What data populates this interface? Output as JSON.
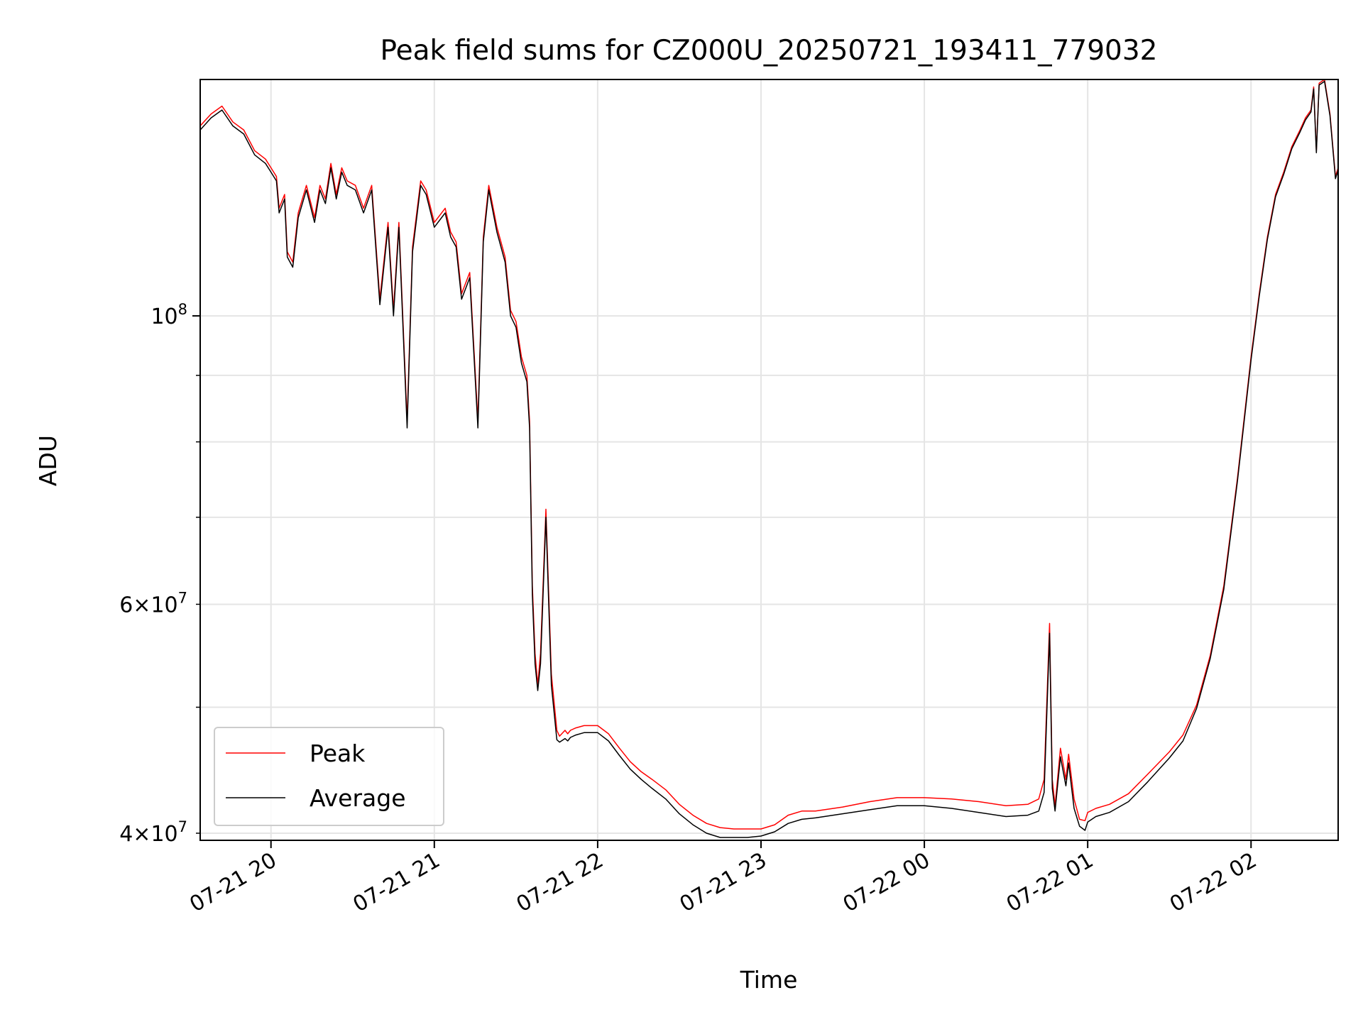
{
  "chart_data": {
    "type": "line",
    "title": "Peak field sums for CZ000U_20250721_193411_779032",
    "xlabel": "Time",
    "ylabel": "ADU",
    "yscale": "log",
    "xlim": [
      "2025-07-21 19:34",
      "2025-07-22 02:32"
    ],
    "ylim": [
      39500000,
      152000000
    ],
    "grid": true,
    "legend_position": "lower-left",
    "x_ticks": [
      {
        "x": "2025-07-21 20:00",
        "label": "07-21 20"
      },
      {
        "x": "2025-07-21 21:00",
        "label": "07-21 21"
      },
      {
        "x": "2025-07-21 22:00",
        "label": "07-21 22"
      },
      {
        "x": "2025-07-21 23:00",
        "label": "07-21 23"
      },
      {
        "x": "2025-07-22 00:00",
        "label": "07-22 00"
      },
      {
        "x": "2025-07-22 01:00",
        "label": "07-22 01"
      },
      {
        "x": "2025-07-22 02:00",
        "label": "07-22 02"
      }
    ],
    "y_major_ticks": [
      {
        "y": 100000000,
        "base": "10",
        "exp": "8"
      }
    ],
    "y_minor_ticks": [
      {
        "y": 40000000,
        "mant": "4",
        "base": "10",
        "exp": "7"
      },
      {
        "y": 60000000,
        "mant": "6",
        "base": "10",
        "exp": "7"
      }
    ],
    "y_minor_unlabeled": [
      50000000,
      70000000,
      80000000,
      90000000
    ],
    "times": [
      "2025-07-21 19:34",
      "2025-07-21 19:38",
      "2025-07-21 19:42",
      "2025-07-21 19:46",
      "2025-07-21 19:50",
      "2025-07-21 19:54",
      "2025-07-21 19:58",
      "2025-07-21 20:00",
      "2025-07-21 20:02",
      "2025-07-21 20:03",
      "2025-07-21 20:05",
      "2025-07-21 20:06",
      "2025-07-21 20:08",
      "2025-07-21 20:10",
      "2025-07-21 20:13",
      "2025-07-21 20:16",
      "2025-07-21 20:18",
      "2025-07-21 20:20",
      "2025-07-21 20:22",
      "2025-07-21 20:24",
      "2025-07-21 20:26",
      "2025-07-21 20:28",
      "2025-07-21 20:31",
      "2025-07-21 20:34",
      "2025-07-21 20:37",
      "2025-07-21 20:40",
      "2025-07-21 20:43",
      "2025-07-21 20:45",
      "2025-07-21 20:47",
      "2025-07-21 20:50",
      "2025-07-21 20:52",
      "2025-07-21 20:55",
      "2025-07-21 20:57",
      "2025-07-21 21:00",
      "2025-07-21 21:04",
      "2025-07-21 21:06",
      "2025-07-21 21:08",
      "2025-07-21 21:10",
      "2025-07-21 21:13",
      "2025-07-21 21:16",
      "2025-07-21 21:18",
      "2025-07-21 21:20",
      "2025-07-21 21:23",
      "2025-07-21 21:26",
      "2025-07-21 21:28",
      "2025-07-21 21:30",
      "2025-07-21 21:32",
      "2025-07-21 21:34",
      "2025-07-21 21:35",
      "2025-07-21 21:36",
      "2025-07-21 21:37",
      "2025-07-21 21:38",
      "2025-07-21 21:39",
      "2025-07-21 21:41",
      "2025-07-21 21:43",
      "2025-07-21 21:45",
      "2025-07-21 21:46",
      "2025-07-21 21:48",
      "2025-07-21 21:49",
      "2025-07-21 21:50",
      "2025-07-21 21:52",
      "2025-07-21 21:55",
      "2025-07-21 22:00",
      "2025-07-21 22:04",
      "2025-07-21 22:08",
      "2025-07-21 22:12",
      "2025-07-21 22:16",
      "2025-07-21 22:20",
      "2025-07-21 22:25",
      "2025-07-21 22:30",
      "2025-07-21 22:35",
      "2025-07-21 22:40",
      "2025-07-21 22:45",
      "2025-07-21 22:50",
      "2025-07-21 22:55",
      "2025-07-21 23:00",
      "2025-07-21 23:05",
      "2025-07-21 23:10",
      "2025-07-21 23:15",
      "2025-07-21 23:20",
      "2025-07-21 23:30",
      "2025-07-21 23:40",
      "2025-07-21 23:50",
      "2025-07-22 00:00",
      "2025-07-22 00:10",
      "2025-07-22 00:20",
      "2025-07-22 00:30",
      "2025-07-22 00:38",
      "2025-07-22 00:42",
      "2025-07-22 00:44",
      "2025-07-22 00:46",
      "2025-07-22 00:47",
      "2025-07-22 00:48",
      "2025-07-22 00:50",
      "2025-07-22 00:52",
      "2025-07-22 00:53",
      "2025-07-22 00:55",
      "2025-07-22 00:57",
      "2025-07-22 00:59",
      "2025-07-22 01:00",
      "2025-07-22 01:03",
      "2025-07-22 01:08",
      "2025-07-22 01:15",
      "2025-07-22 01:22",
      "2025-07-22 01:30",
      "2025-07-22 01:35",
      "2025-07-22 01:40",
      "2025-07-22 01:45",
      "2025-07-22 01:50",
      "2025-07-22 01:55",
      "2025-07-22 02:00",
      "2025-07-22 02:03",
      "2025-07-22 02:06",
      "2025-07-22 02:09",
      "2025-07-22 02:12",
      "2025-07-22 02:15",
      "2025-07-22 02:18",
      "2025-07-22 02:20",
      "2025-07-22 02:22",
      "2025-07-22 02:23",
      "2025-07-22 02:24",
      "2025-07-22 02:25",
      "2025-07-22 02:27",
      "2025-07-22 02:29",
      "2025-07-22 02:31",
      "2025-07-22 02:32"
    ],
    "series": [
      {
        "name": "Peak",
        "color": "#ff0000",
        "values": [
          140000000,
          143000000,
          145000000,
          141000000,
          139000000,
          134000000,
          132000000,
          130000000,
          128000000,
          121000000,
          124000000,
          112000000,
          110000000,
          120000000,
          126000000,
          119000000,
          126000000,
          123000000,
          131000000,
          124000000,
          130000000,
          127000000,
          126000000,
          121000000,
          126000000,
          103000000,
          118000000,
          101000000,
          118000000,
          83000000,
          113000000,
          127000000,
          125000000,
          118000000,
          121000000,
          116000000,
          114000000,
          104000000,
          108000000,
          83000000,
          115000000,
          126000000,
          117000000,
          111000000,
          101000000,
          99000000,
          93000000,
          90000000,
          83000000,
          62000000,
          55000000,
          52000000,
          55000000,
          71000000,
          53000000,
          48000000,
          47500000,
          48000000,
          47700000,
          48000000,
          48200000,
          48400000,
          48400000,
          47700000,
          46500000,
          45400000,
          44600000,
          44000000,
          43200000,
          42100000,
          41300000,
          40700000,
          40400000,
          40300000,
          40300000,
          40300000,
          40600000,
          41300000,
          41600000,
          41600000,
          41900000,
          42300000,
          42600000,
          42600000,
          42500000,
          42300000,
          42000000,
          42100000,
          42500000,
          44000000,
          58000000,
          44000000,
          42000000,
          46500000,
          44000000,
          46000000,
          42500000,
          41000000,
          40900000,
          41500000,
          41800000,
          42100000,
          42900000,
          44400000,
          46200000,
          47600000,
          50200000,
          54800000,
          62000000,
          75000000,
          93000000,
          104000000,
          115000000,
          124000000,
          129000000,
          135000000,
          139000000,
          142000000,
          144000000,
          150000000,
          134000000,
          151000000,
          152000000,
          143000000,
          128000000,
          130000000
        ]
      },
      {
        "name": "Average",
        "color": "#000000",
        "values": [
          139000000,
          142000000,
          144000000,
          140000000,
          138000000,
          133000000,
          131000000,
          129000000,
          127000000,
          120000000,
          123000000,
          111000000,
          109000000,
          119000000,
          125000000,
          118000000,
          125000000,
          122000000,
          130000000,
          123000000,
          129000000,
          126000000,
          125000000,
          120000000,
          125000000,
          102000000,
          117000000,
          100000000,
          117000000,
          82000000,
          112000000,
          126000000,
          124000000,
          117000000,
          120000000,
          115000000,
          113000000,
          103000000,
          107000000,
          82000000,
          114000000,
          125000000,
          116000000,
          110000000,
          100000000,
          98000000,
          92000000,
          89000000,
          82000000,
          61000000,
          54000000,
          51500000,
          54000000,
          70000000,
          52000000,
          47200000,
          47000000,
          47300000,
          47100000,
          47400000,
          47600000,
          47800000,
          47800000,
          47100000,
          45900000,
          44800000,
          44000000,
          43300000,
          42500000,
          41400000,
          40600000,
          40000000,
          39700000,
          39700000,
          39700000,
          39800000,
          40100000,
          40700000,
          41000000,
          41100000,
          41400000,
          41700000,
          42000000,
          42000000,
          41800000,
          41500000,
          41200000,
          41300000,
          41600000,
          43000000,
          57000000,
          43300000,
          41600000,
          45800000,
          43500000,
          45300000,
          41800000,
          40500000,
          40200000,
          40800000,
          41200000,
          41500000,
          42300000,
          43800000,
          45700000,
          47100000,
          49900000,
          54500000,
          61600000,
          74600000,
          92500000,
          103500000,
          114500000,
          123500000,
          128500000,
          134500000,
          138500000,
          141500000,
          143500000,
          149500000,
          133500000,
          150500000,
          151500000,
          142500000,
          127500000,
          129500000
        ]
      }
    ]
  }
}
